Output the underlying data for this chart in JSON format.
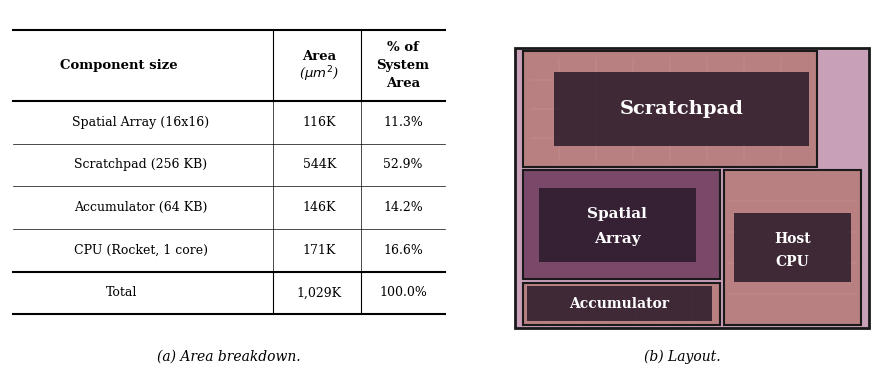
{
  "table_headers": [
    "Component size",
    "Area\n(μm²)",
    "% of\nSystem\nArea"
  ],
  "table_rows": [
    [
      "Spatial Array (16x16)",
      "116K",
      "11.3%"
    ],
    [
      "Scratchpad (256 KB)",
      "544K",
      "52.9%"
    ],
    [
      "Accumulator (64 KB)",
      "146K",
      "14.2%"
    ],
    [
      "CPU (Rocket, 1 core)",
      "171K",
      "16.6%"
    ]
  ],
  "table_total": [
    "Total",
    "1,029K",
    "100.0%"
  ],
  "caption_left": "(a) Area breakdown.",
  "caption_right": "(b) Layout.",
  "bg_chip": "#c09090",
  "bg_scratchpad": "#b07070",
  "bg_spatial": "#7a5070",
  "bg_accumulator": "#b07070",
  "bg_cpu": "#7a5070",
  "label_bg": "#2a1a2a",
  "label_color": "#ffffff",
  "chip_border": "#1a1a1a",
  "outer_border": "#1a1a1a",
  "pink_accent": "#d060a0"
}
